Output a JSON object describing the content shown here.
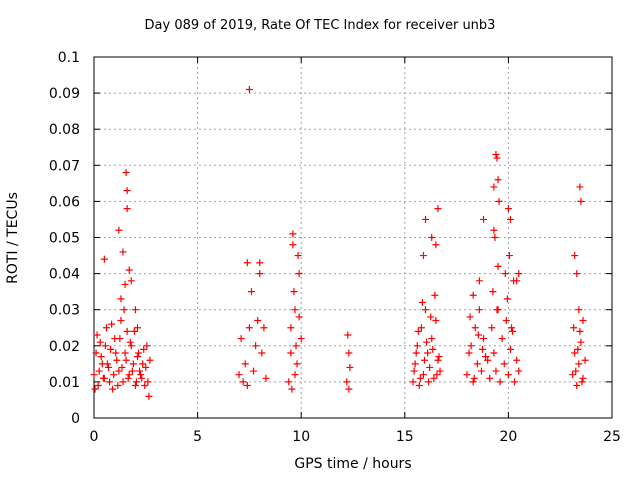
{
  "chart_data": {
    "type": "scatter",
    "title": "Day 089 of 2019, Rate Of TEC Index for receiver unb3",
    "xlabel": "GPS time / hours",
    "ylabel": "ROTI / TECUs",
    "xlim": [
      0,
      25
    ],
    "ylim": [
      0,
      0.1
    ],
    "xticks": [
      "0",
      "5",
      "10",
      "15",
      "20",
      "25"
    ],
    "yticks": [
      "0",
      "0.01",
      "0.02",
      "0.03",
      "0.04",
      "0.05",
      "0.06",
      "0.07",
      "0.08",
      "0.09",
      "0.1"
    ],
    "grid": true,
    "marker": "plus",
    "color": "#ff0000",
    "series": [
      {
        "x": [
          0.0,
          0.1,
          0.2,
          0.3,
          0.4,
          0.5,
          0.6,
          0.7,
          0.8,
          0.9,
          1.0,
          1.1,
          1.2,
          1.3,
          1.4,
          1.5,
          1.6,
          1.7,
          1.8,
          1.9,
          2.0,
          2.1,
          2.2,
          2.3,
          2.4,
          2.5,
          2.6,
          2.7,
          0.05,
          0.15,
          0.25,
          0.35,
          0.45,
          0.55,
          0.65,
          0.75,
          0.85,
          0.95,
          1.05,
          1.15,
          1.25,
          1.35,
          1.45,
          1.55,
          1.65,
          1.75,
          1.85,
          1.95,
          2.05,
          2.15,
          2.25,
          2.35,
          2.45,
          2.55,
          2.65,
          0.5,
          1.2,
          1.4,
          1.55,
          1.6,
          1.6,
          1.7,
          1.5,
          1.3,
          1.8,
          2.0,
          2.1,
          7.0,
          7.1,
          7.2,
          7.3,
          7.4,
          7.5,
          7.6,
          7.7,
          7.8,
          7.9,
          8.0,
          8.1,
          8.2,
          8.3,
          7.4,
          7.5,
          8.0,
          9.4,
          9.5,
          9.6,
          9.7,
          9.8,
          9.9,
          10.0,
          9.55,
          9.65,
          9.75,
          9.85,
          9.5,
          9.6,
          9.7,
          9.9,
          12.2,
          12.3,
          12.25,
          12.35,
          12.3,
          15.4,
          15.5,
          15.6,
          15.7,
          15.8,
          15.9,
          16.0,
          16.1,
          16.2,
          16.3,
          16.4,
          16.5,
          16.6,
          16.7,
          15.45,
          15.55,
          15.65,
          15.75,
          15.85,
          15.95,
          16.05,
          16.15,
          16.25,
          16.35,
          16.45,
          16.55,
          16.65,
          16.0,
          16.3,
          16.5,
          16.6,
          15.9,
          18.0,
          18.1,
          18.2,
          18.3,
          18.4,
          18.5,
          18.6,
          18.7,
          18.8,
          18.9,
          18.15,
          18.35,
          18.55,
          18.75,
          18.3,
          18.6,
          18.8,
          19.0,
          19.1,
          19.2,
          19.3,
          19.4,
          19.5,
          19.6,
          19.7,
          19.8,
          19.9,
          20.0,
          20.1,
          20.2,
          20.3,
          20.4,
          20.5,
          19.25,
          19.35,
          19.45,
          19.55,
          19.85,
          19.95,
          20.05,
          20.15,
          20.25,
          19.4,
          19.45,
          19.5,
          19.3,
          19.3,
          19.5,
          20.0,
          20.1,
          20.4,
          20.5,
          23.1,
          23.2,
          23.3,
          23.4,
          23.5,
          23.6,
          23.7,
          23.15,
          23.25,
          23.35,
          23.45,
          23.55,
          23.4,
          23.45,
          23.5,
          23.2,
          23.3,
          23.6
        ],
        "y": [
          0.012,
          0.018,
          0.009,
          0.021,
          0.015,
          0.011,
          0.025,
          0.014,
          0.019,
          0.008,
          0.022,
          0.016,
          0.013,
          0.027,
          0.01,
          0.018,
          0.024,
          0.012,
          0.02,
          0.015,
          0.009,
          0.017,
          0.013,
          0.011,
          0.019,
          0.014,
          0.01,
          0.016,
          0.008,
          0.023,
          0.013,
          0.017,
          0.011,
          0.02,
          0.015,
          0.01,
          0.026,
          0.012,
          0.018,
          0.009,
          0.022,
          0.014,
          0.03,
          0.016,
          0.011,
          0.021,
          0.013,
          0.024,
          0.01,
          0.018,
          0.012,
          0.015,
          0.009,
          0.02,
          0.006,
          0.044,
          0.052,
          0.046,
          0.068,
          0.063,
          0.058,
          0.041,
          0.037,
          0.033,
          0.038,
          0.03,
          0.025,
          0.012,
          0.022,
          0.01,
          0.015,
          0.009,
          0.025,
          0.035,
          0.013,
          0.02,
          0.027,
          0.043,
          0.018,
          0.025,
          0.011,
          0.043,
          0.091,
          0.04,
          0.01,
          0.025,
          0.048,
          0.03,
          0.015,
          0.04,
          0.022,
          0.008,
          0.035,
          0.02,
          0.045,
          0.018,
          0.051,
          0.012,
          0.028,
          0.01,
          0.018,
          0.023,
          0.014,
          0.008,
          0.01,
          0.015,
          0.02,
          0.009,
          0.025,
          0.012,
          0.03,
          0.018,
          0.014,
          0.022,
          0.011,
          0.027,
          0.016,
          0.013,
          0.013,
          0.018,
          0.024,
          0.011,
          0.032,
          0.016,
          0.021,
          0.01,
          0.028,
          0.019,
          0.034,
          0.012,
          0.017,
          0.055,
          0.05,
          0.048,
          0.058,
          0.045,
          0.012,
          0.018,
          0.02,
          0.01,
          0.025,
          0.015,
          0.03,
          0.013,
          0.022,
          0.017,
          0.028,
          0.011,
          0.023,
          0.019,
          0.034,
          0.038,
          0.055,
          0.016,
          0.011,
          0.025,
          0.018,
          0.013,
          0.03,
          0.01,
          0.022,
          0.015,
          0.027,
          0.012,
          0.019,
          0.024,
          0.01,
          0.016,
          0.013,
          0.035,
          0.05,
          0.03,
          0.06,
          0.04,
          0.033,
          0.045,
          0.025,
          0.038,
          0.073,
          0.072,
          0.066,
          0.064,
          0.052,
          0.042,
          0.058,
          0.055,
          0.038,
          0.04,
          0.012,
          0.018,
          0.009,
          0.015,
          0.021,
          0.011,
          0.016,
          0.025,
          0.013,
          0.019,
          0.024,
          0.01,
          0.03,
          0.064,
          0.06,
          0.045,
          0.04,
          0.027
        ]
      }
    ]
  }
}
